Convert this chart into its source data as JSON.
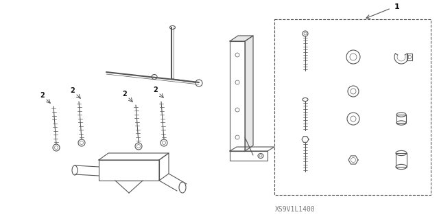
{
  "bg_color": "#ffffff",
  "line_color": "#555555",
  "label_color": "#111111",
  "fig_width": 6.4,
  "fig_height": 3.19,
  "dpi": 100,
  "part_number_text": "XS9V1L1400",
  "label1": "1",
  "label2": "2"
}
